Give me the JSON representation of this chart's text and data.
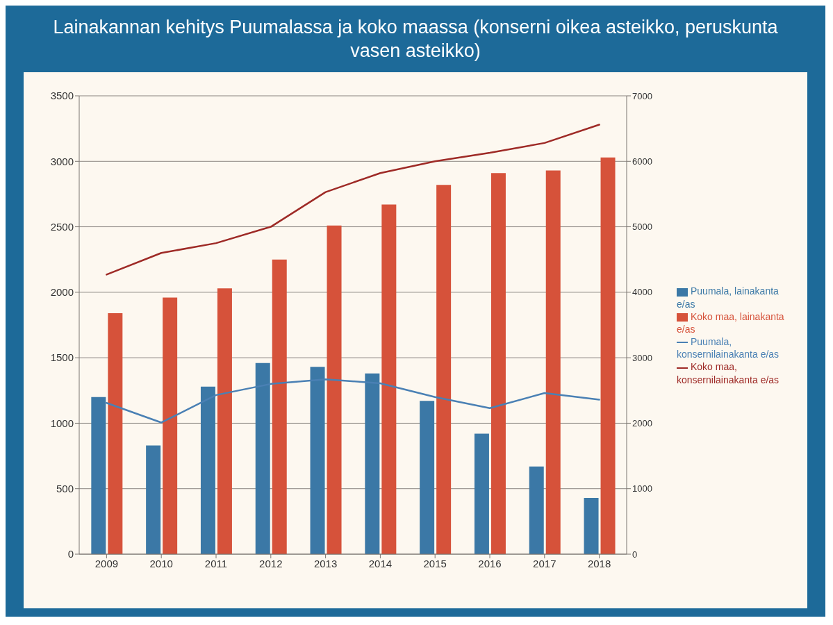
{
  "chart_data": {
    "type": "bar",
    "title": "Lainakannan kehitys Puumalassa ja koko maassa (konserni oikea asteikko, peruskunta vasen asteikko)",
    "categories": [
      "2009",
      "2010",
      "2011",
      "2012",
      "2013",
      "2014",
      "2015",
      "2016",
      "2017",
      "2018"
    ],
    "series": [
      {
        "name": "Puumala, lainakanta e/as",
        "color": "#3b78a6",
        "values": [
          1200,
          830,
          1280,
          1460,
          1430,
          1380,
          1170,
          920,
          670,
          430
        ]
      },
      {
        "name": "Koko maa, lainakanta e/as",
        "color": "#d6523a",
        "values": [
          1840,
          1960,
          2030,
          2250,
          2510,
          2670,
          2820,
          2910,
          2930,
          3030
        ]
      },
      {
        "name": "Puumala, konsernilainakanta e/as",
        "type": "line",
        "axis": "y2",
        "color": "#4a80b4",
        "values": [
          2310,
          2010,
          2430,
          2600,
          2670,
          2610,
          2400,
          2230,
          2460,
          2360
        ]
      },
      {
        "name": "Koko maa, konsernilainakanta e/as",
        "type": "line",
        "axis": "y2",
        "color": "#9e2a26",
        "values": [
          4270,
          4600,
          4750,
          5000,
          5530,
          5820,
          6000,
          6130,
          6280,
          6560
        ]
      }
    ],
    "ylim": [
      0,
      3500
    ],
    "yticks": [
      0,
      500,
      1000,
      1500,
      2000,
      2500,
      3000,
      3500
    ],
    "y2lim": [
      0,
      7000
    ],
    "y2ticks": [
      0,
      1000,
      2000,
      3000,
      4000,
      5000,
      6000,
      7000
    ],
    "grid": "y",
    "legend": "right"
  }
}
